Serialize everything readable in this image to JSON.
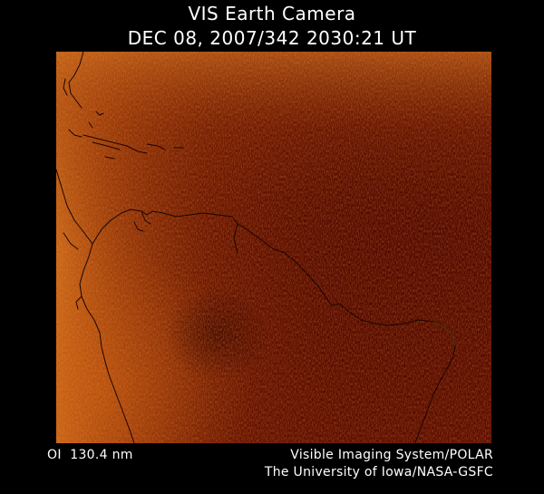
{
  "header": {
    "title": "VIS Earth Camera",
    "timestamp": "DEC 08, 2007/342 2030:21 UT"
  },
  "footer": {
    "filter": "OI  130.4 nm",
    "instrument": "Visible Imaging System/POLAR",
    "institution": "The University of Iowa/NASA-GSFC"
  },
  "colors": {
    "background": "#000000",
    "image_base": "#5a0a00",
    "glow": "#c85a10",
    "coastline": "#1a0500"
  }
}
